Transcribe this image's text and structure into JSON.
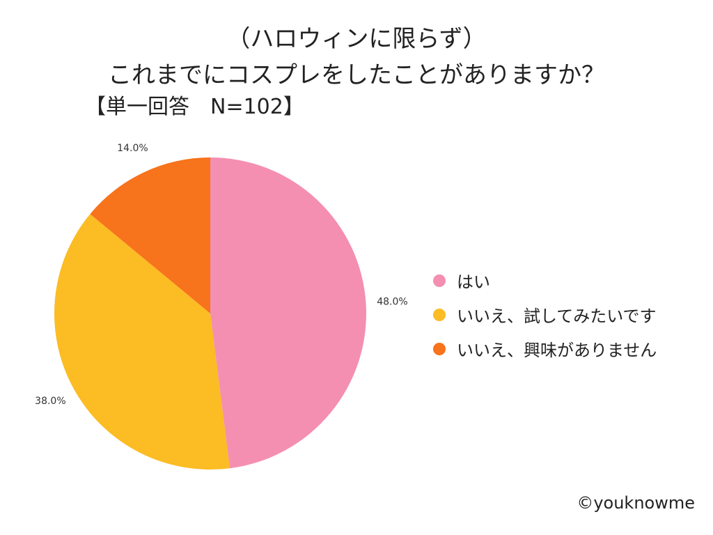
{
  "chart_data": {
    "type": "pie",
    "title_lines": [
      "（ハロウィンに限らず）",
      "これまでにコスプレをしたことがありますか？"
    ],
    "subtitle": "【単一回答　N=102】",
    "categories": [
      "はい",
      "いいえ、試してみたいです",
      "いいえ、興味がありません"
    ],
    "values": [
      48.0,
      38.0,
      14.0
    ],
    "value_labels": [
      "48.0%",
      "38.0%",
      "14.0%"
    ],
    "colors": [
      "#F48FB1",
      "#FBBC24",
      "#F7731C"
    ],
    "start": "12 o'clock",
    "direction": "clockwise",
    "legend_position": "right"
  },
  "credit": "©youknowme"
}
